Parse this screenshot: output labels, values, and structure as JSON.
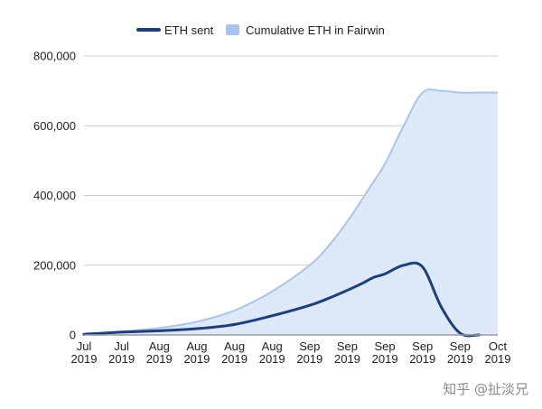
{
  "chart_data": {
    "type": "area",
    "title": "",
    "xlabel": "",
    "ylabel": "",
    "ylim": [
      0,
      800000
    ],
    "grid": true,
    "legend_position": "top-center",
    "y_ticks": [
      0,
      200000,
      400000,
      600000,
      800000
    ],
    "y_tick_labels": [
      "0",
      "200,000",
      "400,000",
      "600,000",
      "800,000"
    ],
    "x_tick_labels": [
      [
        "Jul",
        "2019"
      ],
      [
        "Jul",
        "2019"
      ],
      [
        "Aug",
        "2019"
      ],
      [
        "Aug",
        "2019"
      ],
      [
        "Aug",
        "2019"
      ],
      [
        "Aug",
        "2019"
      ],
      [
        "Sep",
        "2019"
      ],
      [
        "Sep",
        "2019"
      ],
      [
        "Sep",
        "2019"
      ],
      [
        "Sep",
        "2019"
      ],
      [
        "Sep",
        "2019"
      ],
      [
        "Oct",
        "2019"
      ]
    ],
    "x": [
      0,
      1,
      2,
      3,
      4,
      5,
      6,
      6.5,
      7,
      7.4,
      7.7,
      8,
      8.5,
      9,
      9.5,
      10,
      10.5,
      11
    ],
    "series": [
      {
        "name": "ETH sent",
        "kind": "line",
        "color": "#1f3f7a",
        "values": [
          2000,
          8000,
          12000,
          18000,
          30000,
          55000,
          85000,
          105000,
          128000,
          148000,
          165000,
          175000,
          200000,
          195000,
          80000,
          5000,
          0,
          0
        ]
      },
      {
        "name": "Cumulative ETH in Fairwin",
        "kind": "area",
        "color": "#a9c4ec",
        "fill": "#dde8f8",
        "values": [
          2000,
          10000,
          20000,
          38000,
          70000,
          125000,
          200000,
          255000,
          325000,
          390000,
          440000,
          490000,
          600000,
          695000,
          700000,
          695000,
          695000,
          695000
        ]
      }
    ]
  },
  "colors": {
    "grid": "#cccccc",
    "axis": "#999999",
    "legend_line": "#1f3f7a",
    "legend_swatch": "#a9c4ec"
  },
  "watermark": "知乎 @扯淡兄"
}
